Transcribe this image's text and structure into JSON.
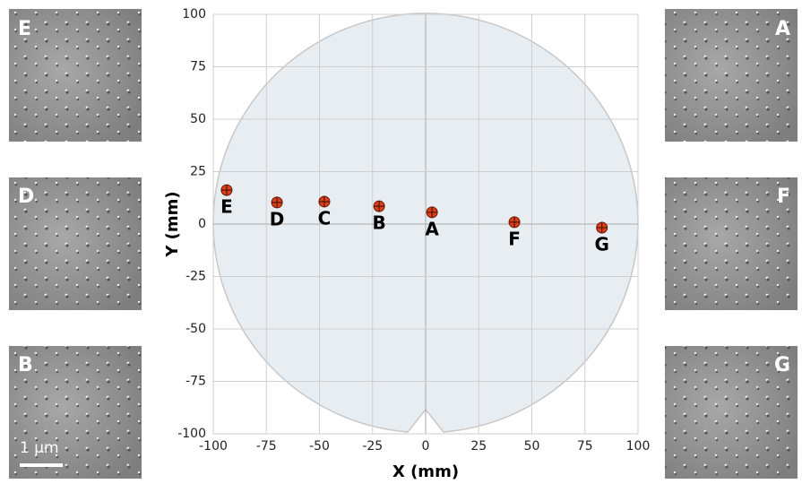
{
  "chart_data": {
    "type": "scatter",
    "xlabel": "X (mm)",
    "ylabel": "Y (mm)",
    "xlim": [
      -100,
      100
    ],
    "ylim": [
      -100,
      100
    ],
    "xticks": [
      -100,
      -75,
      -50,
      -25,
      0,
      25,
      50,
      75,
      100
    ],
    "yticks": [
      -100,
      -75,
      -50,
      -25,
      0,
      25,
      50,
      75,
      100
    ],
    "grid": true,
    "color": "#d9401a",
    "point_labels": [
      "E",
      "D",
      "C",
      "B",
      "A",
      "F",
      "G"
    ],
    "x": [
      -93.7,
      -70,
      -47.7,
      -21.9,
      3,
      41.8,
      83
    ],
    "values": [
      16.2,
      10.3,
      10.7,
      8.5,
      5.6,
      0.9,
      -1.7
    ],
    "panels": [
      "E",
      "D",
      "B",
      "A",
      "F",
      "G"
    ],
    "scale_bar_label": "1 µm"
  }
}
